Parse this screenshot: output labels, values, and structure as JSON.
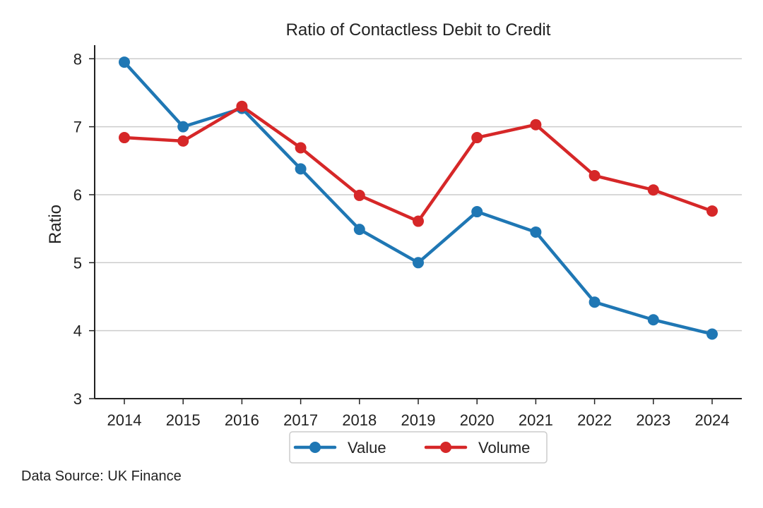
{
  "chart_data": {
    "type": "line",
    "title": "Ratio of Contactless Debit to Credit",
    "xlabel": "",
    "ylabel": "Ratio",
    "categories": [
      "2014",
      "2015",
      "2016",
      "2017",
      "2018",
      "2019",
      "2020",
      "2021",
      "2022",
      "2023",
      "2024"
    ],
    "yticks": [
      "3",
      "4",
      "5",
      "6",
      "7",
      "8"
    ],
    "ylim": [
      3,
      8.2
    ],
    "grid": "horizontal",
    "legend_position": "bottom-center",
    "series": [
      {
        "name": "Value",
        "color": "#1f77b4",
        "values": [
          7.95,
          7.0,
          7.27,
          6.38,
          5.49,
          5.0,
          5.75,
          5.45,
          4.42,
          4.16,
          3.95
        ]
      },
      {
        "name": "Volume",
        "color": "#d62728",
        "values": [
          6.84,
          6.79,
          7.3,
          6.69,
          5.99,
          5.61,
          6.84,
          7.03,
          6.28,
          6.07,
          5.76
        ]
      }
    ]
  },
  "footer": {
    "source": "Data Source: UK Finance"
  }
}
